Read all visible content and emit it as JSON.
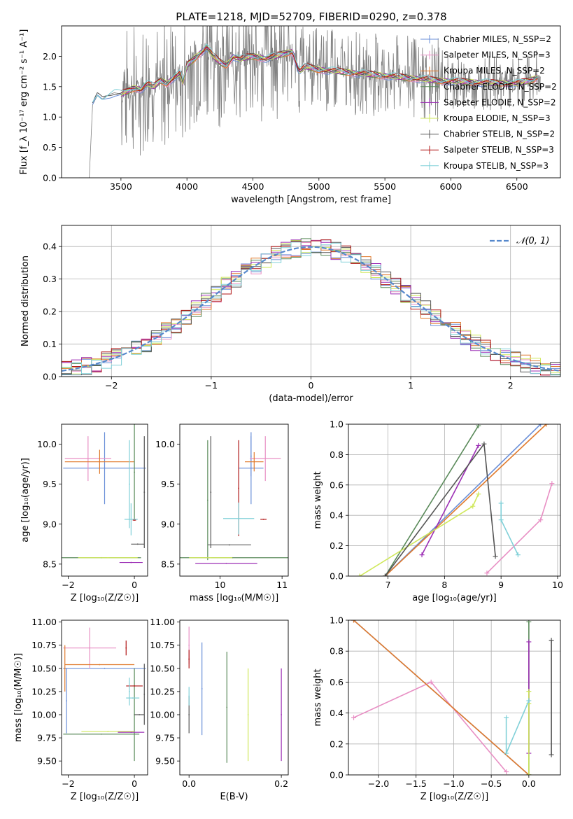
{
  "figure_title": "PLATE=1218, MJD=52709, FIBERID=0290, z=0.378",
  "series_names": [
    "Chabrier MILES, N_SSP=2",
    "Salpeter MILES, N_SSP=3",
    "Kroupa MILES, N_SSP=2",
    "Chabrier ELODIE, N_SSP=2",
    "Salpeter ELODIE, N_SSP=2",
    "Kroupa ELODIE, N_SSP=3",
    "Chabrier STELIB, N_SSP=2",
    "Salpeter STELIB, N_SSP=3",
    "Kroupa STELIB, N_SSP=3"
  ],
  "series_colors": [
    "#6a8fd8",
    "#e88fc4",
    "#e07a2c",
    "#5a8a5a",
    "#9c2fb5",
    "#cfe85a",
    "#555555",
    "#b01515",
    "#80d0d8"
  ],
  "chart_data": [
    {
      "type": "line",
      "xlabel": "wavelength [Angstrom, rest frame]",
      "ylabel": "Flux [f_λ 10⁻¹⁷ erg cm⁻² s⁻¹ A⁻¹]",
      "xlim": [
        3050,
        6830
      ],
      "ylim": [
        0,
        2.5
      ],
      "xticks": [
        3500,
        4000,
        4500,
        5000,
        5500,
        6000,
        6500
      ],
      "yticks": [
        0.0,
        0.5,
        1.0,
        1.5,
        2.0
      ],
      "data_color": "#808080",
      "data_model_x": [
        3180,
        3260,
        3285,
        3320,
        3360,
        3400,
        3450,
        3500,
        3550,
        3600,
        3650,
        3700,
        3750,
        3800,
        3850,
        3900,
        3950,
        3970,
        4000,
        4050,
        4100,
        4150,
        4200,
        4250,
        4300,
        4350,
        4400,
        4450,
        4500,
        4600,
        4700,
        4800,
        4850,
        4900,
        5000,
        5100,
        5200,
        5300,
        5400,
        5500,
        5600,
        5700,
        5800,
        5900,
        6000,
        6100,
        6200,
        6300,
        6400,
        6500,
        6600,
        6680
      ],
      "data_model_y": [
        0.0,
        0.0,
        1.2,
        1.35,
        1.3,
        1.36,
        1.4,
        1.38,
        1.42,
        1.48,
        1.45,
        1.55,
        1.5,
        1.6,
        1.55,
        1.65,
        1.72,
        1.55,
        1.85,
        1.95,
        2.05,
        2.15,
        2.0,
        1.9,
        1.85,
        2.0,
        1.95,
        1.98,
        2.0,
        1.96,
        2.02,
        2.08,
        1.75,
        1.83,
        1.78,
        1.76,
        1.74,
        1.72,
        1.7,
        1.68,
        1.66,
        1.64,
        1.62,
        1.6,
        1.59,
        1.58,
        1.57,
        1.56,
        1.56,
        1.55,
        1.6,
        1.68
      ],
      "legend": "top-right"
    },
    {
      "type": "histogram",
      "xlabel": "(data-model)/error",
      "ylabel": "Normed distribution",
      "xlim": [
        -2.5,
        2.5
      ],
      "ylim": [
        0,
        0.465
      ],
      "xticks": [
        -2,
        -1,
        0,
        1,
        2
      ],
      "yticks": [
        0.0,
        0.1,
        0.2,
        0.3,
        0.4
      ],
      "grid": true,
      "reference_curve": "𝒩(0, 1)",
      "reference_color": "#5588cc",
      "bin_width": 0.1,
      "legend": "top-right"
    },
    {
      "type": "scatter",
      "xlabel": "Z [log₁₀(Z/Z☉)]",
      "ylabel": "age  [log₁₀(age/yr)]",
      "xlim": [
        -2.2,
        0.4
      ],
      "ylim": [
        8.35,
        10.25
      ],
      "xticks": [
        -2,
        0
      ],
      "yticks": [
        8.5,
        9.0,
        9.5,
        10.0
      ],
      "points": [
        {
          "s": 0,
          "x": -0.9,
          "xerr": 1.25,
          "y": 9.7,
          "yerr": 0.45
        },
        {
          "s": 1,
          "x": -1.4,
          "xerr": 0.7,
          "y": 9.82,
          "yerr": 0.28
        },
        {
          "s": 2,
          "x": -1.05,
          "xerr": 1.05,
          "y": 9.78,
          "yerr": 0.15
        },
        {
          "s": 3,
          "x": -1.0,
          "xerr": 1.2,
          "y": 8.58,
          "yerr": 0.0
        },
        {
          "s": 3,
          "x": 0.0,
          "xerr": 0.0,
          "y": 9.65,
          "yerr": 0.6
        },
        {
          "s": 4,
          "x": -0.1,
          "xerr": 0.35,
          "y": 8.52,
          "yerr": 0.0
        },
        {
          "s": 5,
          "x": -0.8,
          "xerr": 0.9,
          "y": 8.58,
          "yerr": 0.0
        },
        {
          "s": 6,
          "x": 0.1,
          "xerr": 0.2,
          "y": 8.75,
          "yerr": 0.0
        },
        {
          "s": 6,
          "x": 0.3,
          "xerr": 0.0,
          "y": 9.4,
          "yerr": 0.7
        },
        {
          "s": 7,
          "x": 0.0,
          "xerr": 0.05,
          "y": 9.05,
          "yerr": 0.0
        },
        {
          "s": 8,
          "x": -0.1,
          "xerr": 0.2,
          "y": 9.06,
          "yerr": 0.2
        },
        {
          "s": 8,
          "x": -0.15,
          "xerr": 0.0,
          "y": 9.5,
          "yerr": 0.55
        }
      ]
    },
    {
      "type": "scatter",
      "xlabel": "mass [log₁₀(M/M☉)]",
      "ylabel": "",
      "xlim": [
        9.35,
        11.1
      ],
      "ylim": [
        8.35,
        10.25
      ],
      "xticks": [
        10,
        11
      ],
      "yticks": [
        8.5,
        9.0,
        9.5,
        10.0
      ],
      "points": [
        {
          "s": 0,
          "x": 10.5,
          "xerr": 0.2,
          "y": 9.7,
          "yerr": 0.45
        },
        {
          "s": 0,
          "x": 10.5,
          "xerr": 0.0,
          "y": 9.85,
          "yerr": 0.25
        },
        {
          "s": 1,
          "x": 10.73,
          "xerr": 0.25,
          "y": 9.82,
          "yerr": 0.28
        },
        {
          "s": 2,
          "x": 10.55,
          "xerr": 0.15,
          "y": 9.78,
          "yerr": 0.12
        },
        {
          "s": 3,
          "x": 10.2,
          "xerr": 0.9,
          "y": 8.58,
          "yerr": 0.0
        },
        {
          "s": 3,
          "x": 9.8,
          "xerr": 0.0,
          "y": 9.3,
          "yerr": 0.75
        },
        {
          "s": 4,
          "x": 10.1,
          "xerr": 0.5,
          "y": 8.51,
          "yerr": 0.0
        },
        {
          "s": 5,
          "x": 9.85,
          "xerr": 0.35,
          "y": 8.58,
          "yerr": 0.0
        },
        {
          "s": 6,
          "x": 10.15,
          "xerr": 0.35,
          "y": 8.74,
          "yerr": 0.0
        },
        {
          "s": 6,
          "x": 9.85,
          "xerr": 0.0,
          "y": 9.4,
          "yerr": 0.7
        },
        {
          "s": 7,
          "x": 10.7,
          "xerr": 0.05,
          "y": 9.06,
          "yerr": 0.0
        },
        {
          "s": 7,
          "x": 10.3,
          "xerr": 0.0,
          "y": 9.45,
          "yerr": 0.6
        },
        {
          "s": 8,
          "x": 10.3,
          "xerr": 0.25,
          "y": 9.07,
          "yerr": 0.2
        }
      ]
    },
    {
      "type": "line",
      "xlabel": "age  [log₁₀(age/yr)]",
      "ylabel": "mass weight",
      "xlim": [
        6.3,
        10.05
      ],
      "ylim": [
        0,
        1
      ],
      "xticks": [
        7,
        8,
        9,
        10
      ],
      "yticks": [
        0.0,
        0.2,
        0.4,
        0.6,
        0.8,
        1.0
      ],
      "grid": true,
      "series": [
        {
          "s": 0,
          "x": [
            6.95,
            9.7
          ],
          "y": [
            0.0,
            1.0
          ]
        },
        {
          "s": 1,
          "x": [
            8.75,
            9.7,
            9.9
          ],
          "y": [
            0.02,
            0.37,
            0.61
          ]
        },
        {
          "s": 2,
          "x": [
            6.95,
            9.8
          ],
          "y": [
            0.0,
            1.0
          ]
        },
        {
          "s": 3,
          "x": [
            6.95,
            8.6
          ],
          "y": [
            0.0,
            0.99
          ]
        },
        {
          "s": 4,
          "x": [
            7.6,
            8.6
          ],
          "y": [
            0.14,
            0.86
          ]
        },
        {
          "s": 5,
          "x": [
            6.5,
            8.5,
            8.6
          ],
          "y": [
            0.0,
            0.46,
            0.54
          ]
        },
        {
          "s": 6,
          "x": [
            6.95,
            8.7,
            8.9
          ],
          "y": [
            0.0,
            0.87,
            0.13
          ]
        },
        {
          "s": 7,
          "x": [],
          "y": []
        },
        {
          "s": 8,
          "x": [
            9.0,
            9.0,
            9.3
          ],
          "y": [
            0.48,
            0.37,
            0.14
          ]
        }
      ]
    },
    {
      "type": "scatter",
      "xlabel": "Z [log₁₀(Z/Z☉)]",
      "ylabel": "mass [log₁₀(M/M☉)]",
      "xlim": [
        -2.2,
        0.4
      ],
      "ylim": [
        9.35,
        11.02
      ],
      "xticks": [
        -2,
        0
      ],
      "yticks": [
        9.5,
        9.75,
        10.0,
        10.25,
        10.5,
        10.75,
        11.0
      ],
      "points": [
        {
          "s": 0,
          "x": -0.9,
          "xerr": 1.25,
          "y": 10.5,
          "yerr": 0.0
        },
        {
          "s": 0,
          "x": -2.05,
          "xerr": 0.0,
          "y": 10.15,
          "yerr": 0.35
        },
        {
          "s": 1,
          "x": -1.35,
          "xerr": 0.8,
          "y": 10.72,
          "yerr": 0.22
        },
        {
          "s": 2,
          "x": -1.05,
          "xerr": 1.05,
          "y": 10.54,
          "yerr": 0.0
        },
        {
          "s": 2,
          "x": -2.1,
          "xerr": 0.0,
          "y": 10.5,
          "yerr": 0.25
        },
        {
          "s": 3,
          "x": -1.0,
          "xerr": 1.15,
          "y": 9.79,
          "yerr": 0.0
        },
        {
          "s": 3,
          "x": 0.0,
          "xerr": 0.0,
          "y": 10.0,
          "yerr": 0.5
        },
        {
          "s": 4,
          "x": -0.1,
          "xerr": 0.4,
          "y": 9.81,
          "yerr": 0.0
        },
        {
          "s": 5,
          "x": -0.8,
          "xerr": 0.8,
          "y": 9.82,
          "yerr": 0.0
        },
        {
          "s": 6,
          "x": 0.3,
          "xerr": 0.0,
          "y": 10.22,
          "yerr": 0.33
        },
        {
          "s": 6,
          "x": 0.15,
          "xerr": 0.15,
          "y": 10.0,
          "yerr": 0.0
        },
        {
          "s": 7,
          "x": 0.0,
          "xerr": 0.25,
          "y": 10.31,
          "yerr": 0.0
        },
        {
          "s": 7,
          "x": -0.25,
          "xerr": 0.0,
          "y": 10.72,
          "yerr": 0.08
        },
        {
          "s": 8,
          "x": -0.05,
          "xerr": 0.2,
          "y": 10.18,
          "yerr": 0.0
        },
        {
          "s": 8,
          "x": -0.15,
          "xerr": 0.0,
          "y": 10.25,
          "yerr": 0.15
        }
      ]
    },
    {
      "type": "scatter",
      "xlabel": "E(B-V)",
      "ylabel": "",
      "xlim": [
        -0.02,
        0.215
      ],
      "ylim": [
        9.35,
        11.02
      ],
      "xticks": [
        0.0,
        0.2
      ],
      "yticks": [
        9.5,
        9.75,
        10.0,
        10.25,
        10.5,
        10.75,
        11.0
      ],
      "points": [
        {
          "s": 0,
          "x": 0.028,
          "xerr": 0.0,
          "y": 10.28,
          "yerr": 0.5
        },
        {
          "s": 1,
          "x": 0.0,
          "xerr": 0.0,
          "y": 10.75,
          "yerr": 0.2
        },
        {
          "s": 3,
          "x": 0.082,
          "xerr": 0.0,
          "y": 10.08,
          "yerr": 0.6
        },
        {
          "s": 4,
          "x": 0.2,
          "xerr": 0.0,
          "y": 10.0,
          "yerr": 0.5
        },
        {
          "s": 5,
          "x": 0.128,
          "xerr": 0.0,
          "y": 10.0,
          "yerr": 0.5
        },
        {
          "s": 6,
          "x": 0.0,
          "xerr": 0.0,
          "y": 10.0,
          "yerr": 0.2
        },
        {
          "s": 7,
          "x": 0.0,
          "xerr": 0.0,
          "y": 10.6,
          "yerr": 0.1
        },
        {
          "s": 8,
          "x": 0.0,
          "xerr": 0.0,
          "y": 10.2,
          "yerr": 0.1
        }
      ]
    },
    {
      "type": "line",
      "xlabel": "Z [log₁₀(Z/Z☉)]",
      "ylabel": "mass weight",
      "xlim": [
        -2.4,
        0.42
      ],
      "ylim": [
        0,
        1
      ],
      "xticks": [
        -2.0,
        -1.5,
        -1.0,
        -0.5,
        0.0
      ],
      "yticks": [
        0.0,
        0.2,
        0.4,
        0.6,
        0.8,
        1.0
      ],
      "grid": true,
      "series": [
        {
          "s": 0,
          "x": [
            -2.33,
            0.0
          ],
          "y": [
            1.0,
            0.0
          ]
        },
        {
          "s": 1,
          "x": [
            -2.33,
            -1.3,
            -0.3
          ],
          "y": [
            0.37,
            0.6,
            0.02
          ]
        },
        {
          "s": 2,
          "x": [
            -2.33,
            0.0
          ],
          "y": [
            1.0,
            0.0
          ]
        },
        {
          "s": 3,
          "x": [
            0.0,
            0.0
          ],
          "y": [
            0.0,
            0.99
          ]
        },
        {
          "s": 4,
          "x": [
            0.0,
            0.0
          ],
          "y": [
            0.14,
            0.86
          ]
        },
        {
          "s": 5,
          "x": [
            0.0,
            0.0,
            0.0
          ],
          "y": [
            0.0,
            0.46,
            0.54
          ]
        },
        {
          "s": 6,
          "x": [
            0.3,
            0.3
          ],
          "y": [
            0.13,
            0.87
          ]
        },
        {
          "s": 7,
          "x": [],
          "y": []
        },
        {
          "s": 8,
          "x": [
            -0.3,
            -0.3,
            0.0
          ],
          "y": [
            0.37,
            0.14,
            0.48
          ]
        }
      ]
    }
  ]
}
